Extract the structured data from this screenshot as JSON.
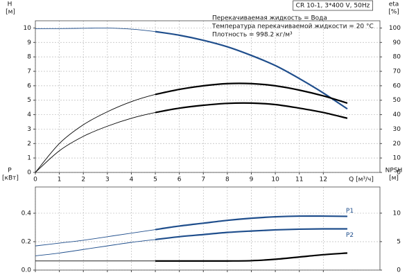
{
  "chart_data": [
    {
      "type": "line",
      "title": "CR 10-1, 3*400 V, 50Hz",
      "annotations": [
        "Перекачиваемая жидкость = Вода",
        "Температура перекачиваемой жидкости = 20 °C",
        "Плотность = 998.2 кг/м³"
      ],
      "ylabel": [
        "H",
        "[м]"
      ],
      "y2label": [
        "eta",
        "[%]"
      ],
      "xlabel": "Q [м³/ч]",
      "x": [
        0,
        1,
        2,
        3,
        4,
        5,
        6,
        7,
        8,
        9,
        10,
        11,
        12,
        13
      ],
      "xlim": [
        0,
        14.36
      ],
      "xticks": [
        0,
        1,
        2,
        3,
        4,
        5,
        6,
        7,
        8,
        9,
        10,
        11,
        12
      ],
      "ylim": [
        0,
        10.5
      ],
      "yticks": [
        0,
        1,
        2,
        3,
        4,
        5,
        6,
        7,
        8,
        9,
        10
      ],
      "y2lim": [
        0,
        105
      ],
      "y2ticks": [
        0,
        10,
        20,
        30,
        40,
        50,
        60,
        70,
        80,
        90,
        100
      ],
      "grid": true,
      "duty_range": [
        5,
        13
      ],
      "series": [
        {
          "color": "#1f4e8c",
          "axis": "y",
          "values": [
            9.95,
            9.96,
            9.98,
            10.0,
            9.92,
            9.75,
            9.5,
            9.15,
            8.7,
            8.1,
            7.4,
            6.5,
            5.5,
            4.4
          ]
        },
        {
          "color": "#000000",
          "axis": "y2",
          "values": [
            0,
            20,
            33,
            42,
            49,
            54,
            57.5,
            60,
            61.5,
            61.5,
            60,
            57,
            53,
            48
          ]
        },
        {
          "color": "#000000",
          "axis": "y2",
          "values": [
            0,
            15,
            25,
            32,
            37.5,
            41.5,
            44.5,
            46.5,
            47.8,
            48,
            47,
            44.5,
            41.5,
            37.5
          ]
        }
      ]
    },
    {
      "type": "line",
      "ylabel": [
        "P",
        "[кВт]"
      ],
      "y2label": [
        "NPSH",
        "[м]"
      ],
      "x": [
        0,
        1,
        2,
        3,
        4,
        5,
        6,
        7,
        8,
        9,
        10,
        11,
        12,
        13
      ],
      "xlim": [
        0,
        14.36
      ],
      "xticks": [
        0,
        1,
        2,
        3,
        4,
        5,
        6,
        7,
        8,
        9,
        10,
        11,
        12
      ],
      "ylim": [
        0,
        0.585
      ],
      "yticks": [
        {
          "value": 0,
          "label": "0.0"
        },
        0.2,
        0.4
      ],
      "y2lim": [
        0,
        14.6
      ],
      "y2ticks": [
        0,
        5,
        10
      ],
      "grid": true,
      "duty_range": [
        5,
        13
      ],
      "series": [
        {
          "name": "P1",
          "color": "#1f4e8c",
          "axis": "y",
          "values": [
            0.17,
            0.19,
            0.21,
            0.235,
            0.26,
            0.285,
            0.31,
            0.33,
            0.35,
            0.365,
            0.375,
            0.38,
            0.38,
            0.378
          ]
        },
        {
          "name": "P2",
          "color": "#1f4e8c",
          "axis": "y",
          "values": [
            0.1,
            0.12,
            0.145,
            0.17,
            0.195,
            0.215,
            0.235,
            0.25,
            0.265,
            0.275,
            0.283,
            0.288,
            0.29,
            0.29
          ]
        },
        {
          "color": "#000000",
          "axis": "y2",
          "values": [
            1.6,
            1.6,
            1.6,
            1.6,
            1.6,
            1.6,
            1.6,
            1.6,
            1.6,
            1.65,
            1.9,
            2.3,
            2.7,
            3.0
          ]
        }
      ]
    }
  ]
}
